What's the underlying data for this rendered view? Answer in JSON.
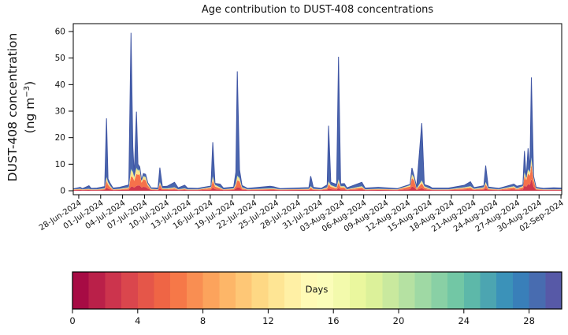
{
  "chart_data": {
    "type": "area",
    "stacked": true,
    "title": "Age contribution to DUST-408 concentrations",
    "ylabel": "DUST-408 concentration",
    "ylabel_units_pre": "(ng m",
    "ylabel_units_sup": "−3",
    "ylabel_units_post": ")",
    "ylim": [
      0,
      60
    ],
    "yticks": [
      0,
      10,
      20,
      30,
      40,
      50,
      60
    ],
    "grid": false,
    "legend": "none (colorbar encodes age in days)",
    "x_domain_days": [
      -0.75,
      66.1
    ],
    "xtick_days": [
      0,
      3,
      6,
      9,
      12,
      15,
      18,
      21,
      24,
      27,
      30,
      33,
      36,
      39,
      42,
      45,
      48,
      51,
      54,
      57,
      60,
      63,
      66
    ],
    "xtick_labels": [
      "28-Jun-2024",
      "01-Jul-2024",
      "04-Jul-2024",
      "07-Jul-2024",
      "10-Jul-2024",
      "13-Jul-2024",
      "16-Jul-2024",
      "19-Jul-2024",
      "22-Jul-2024",
      "25-Jul-2024",
      "28-Jul-2024",
      "31-Jul-2024",
      "03-Aug-2024",
      "06-Aug-2024",
      "09-Aug-2024",
      "12-Aug-2024",
      "15-Aug-2024",
      "18-Aug-2024",
      "21-Aug-2024",
      "24-Aug-2024",
      "27-Aug-2024",
      "30-Aug-2024",
      "02-Sep-2024"
    ],
    "layers": [
      {
        "name": "age-youngest",
        "color": "#cf384d"
      },
      {
        "name": "age-young",
        "color": "#f5714b"
      },
      {
        "name": "age-mid",
        "color": "#fde38c"
      },
      {
        "name": "age-older",
        "color": "#9ad5a5"
      },
      {
        "name": "age-oldest",
        "color": "#4a66ae",
        "stroke": "#3f55a4"
      }
    ],
    "points_format": [
      "day_from_28_jun",
      "total",
      "youngest",
      "young",
      "mid",
      "older"
    ],
    "points": [
      [
        -0.75,
        0.7,
        0.25,
        0.15,
        0.1,
        0.05
      ],
      [
        0.2,
        1.3,
        0.3,
        0.2,
        0.15,
        0.08
      ],
      [
        0.5,
        0.8,
        0.25,
        0.15,
        0.1,
        0.05
      ],
      [
        1.4,
        1.9,
        0.3,
        0.2,
        0.15,
        0.08
      ],
      [
        1.7,
        0.9,
        0.25,
        0.15,
        0.1,
        0.05
      ],
      [
        2.5,
        1.0,
        0.25,
        0.15,
        0.1,
        0.05
      ],
      [
        3.55,
        1.6,
        0.3,
        0.3,
        0.2,
        0.1
      ],
      [
        3.8,
        27.3,
        1.2,
        2.5,
        1.2,
        0.3
      ],
      [
        4.0,
        4.5,
        0.8,
        1.5,
        0.8,
        0.2
      ],
      [
        4.3,
        2.8,
        0.5,
        0.8,
        0.5,
        0.15
      ],
      [
        4.7,
        1.0,
        0.25,
        0.15,
        0.1,
        0.05
      ],
      [
        5.6,
        1.3,
        0.3,
        0.2,
        0.15,
        0.08
      ],
      [
        6.85,
        2.2,
        0.4,
        0.5,
        0.3,
        0.1
      ],
      [
        7.15,
        59.5,
        1.5,
        4.0,
        2.2,
        0.5
      ],
      [
        7.4,
        16.5,
        1.5,
        3.5,
        1.8,
        0.4
      ],
      [
        7.6,
        6.0,
        1.2,
        2.5,
        1.2,
        0.3
      ],
      [
        7.9,
        29.8,
        1.8,
        4.5,
        2.0,
        0.4
      ],
      [
        8.1,
        10.0,
        2.0,
        4.0,
        1.5,
        0.3
      ],
      [
        8.35,
        9.0,
        2.0,
        4.2,
        1.5,
        0.3
      ],
      [
        8.6,
        4.0,
        1.2,
        1.8,
        0.7,
        0.2
      ],
      [
        8.85,
        6.5,
        1.5,
        2.8,
        1.0,
        0.25
      ],
      [
        9.15,
        6.2,
        1.4,
        2.6,
        1.0,
        0.25
      ],
      [
        9.45,
        3.0,
        0.8,
        1.2,
        0.5,
        0.15
      ],
      [
        9.9,
        1.1,
        0.3,
        0.2,
        0.15,
        0.08
      ],
      [
        10.85,
        1.0,
        0.25,
        0.15,
        0.1,
        0.05
      ],
      [
        11.1,
        8.7,
        0.8,
        1.6,
        0.7,
        0.2
      ],
      [
        11.45,
        1.6,
        0.3,
        0.3,
        0.2,
        0.1
      ],
      [
        12.1,
        1.7,
        0.3,
        0.3,
        0.2,
        0.1
      ],
      [
        13.1,
        3.2,
        0.4,
        0.5,
        0.3,
        0.1
      ],
      [
        13.6,
        1.1,
        0.25,
        0.15,
        0.1,
        0.05
      ],
      [
        14.5,
        2.1,
        0.3,
        0.3,
        0.2,
        0.1
      ],
      [
        14.9,
        1.0,
        0.25,
        0.15,
        0.1,
        0.05
      ],
      [
        16.3,
        0.9,
        0.25,
        0.15,
        0.1,
        0.05
      ],
      [
        18.1,
        1.8,
        0.4,
        0.6,
        0.3,
        0.1
      ],
      [
        18.35,
        18.3,
        1.2,
        2.8,
        1.2,
        0.3
      ],
      [
        18.65,
        2.8,
        0.6,
        1.0,
        0.5,
        0.15
      ],
      [
        19.35,
        2.5,
        0.4,
        0.5,
        0.3,
        0.1
      ],
      [
        19.8,
        1.0,
        0.25,
        0.15,
        0.1,
        0.05
      ],
      [
        21.2,
        1.4,
        0.3,
        0.3,
        0.2,
        0.1
      ],
      [
        21.5,
        7.0,
        0.8,
        1.2,
        0.6,
        0.2
      ],
      [
        21.7,
        45.0,
        1.3,
        2.6,
        1.4,
        0.4
      ],
      [
        22.0,
        8.0,
        1.2,
        2.4,
        1.0,
        0.3
      ],
      [
        22.35,
        2.0,
        0.4,
        0.5,
        0.3,
        0.1
      ],
      [
        23.1,
        0.9,
        0.25,
        0.15,
        0.1,
        0.05
      ],
      [
        26.2,
        1.7,
        0.3,
        0.3,
        0.2,
        0.1
      ],
      [
        26.7,
        1.5,
        0.3,
        0.3,
        0.2,
        0.1
      ],
      [
        27.6,
        0.8,
        0.25,
        0.15,
        0.1,
        0.05
      ],
      [
        31.5,
        1.2,
        0.3,
        0.2,
        0.15,
        0.08
      ],
      [
        31.75,
        5.5,
        0.5,
        0.7,
        0.4,
        0.15
      ],
      [
        32.1,
        1.3,
        0.3,
        0.2,
        0.15,
        0.08
      ],
      [
        33.2,
        0.9,
        0.25,
        0.15,
        0.1,
        0.05
      ],
      [
        34.0,
        2.2,
        0.4,
        0.5,
        0.3,
        0.1
      ],
      [
        34.2,
        24.5,
        0.9,
        1.6,
        0.8,
        0.25
      ],
      [
        34.5,
        3.2,
        0.6,
        0.9,
        0.5,
        0.15
      ],
      [
        35.3,
        2.4,
        0.4,
        0.5,
        0.3,
        0.1
      ],
      [
        35.55,
        50.5,
        1.0,
        2.0,
        1.0,
        0.3
      ],
      [
        35.85,
        2.6,
        0.5,
        0.7,
        0.4,
        0.15
      ],
      [
        36.35,
        2.7,
        0.5,
        0.7,
        0.4,
        0.15
      ],
      [
        36.7,
        1.1,
        0.25,
        0.15,
        0.1,
        0.05
      ],
      [
        38.75,
        3.2,
        0.5,
        0.7,
        0.4,
        0.15
      ],
      [
        39.2,
        1.0,
        0.25,
        0.15,
        0.1,
        0.05
      ],
      [
        41.0,
        1.3,
        0.3,
        0.2,
        0.15,
        0.08
      ],
      [
        43.6,
        0.8,
        0.25,
        0.15,
        0.1,
        0.05
      ],
      [
        45.35,
        2.4,
        0.6,
        1.0,
        0.4,
        0.1
      ],
      [
        45.6,
        8.6,
        1.6,
        3.2,
        1.2,
        0.25
      ],
      [
        45.9,
        5.4,
        1.3,
        2.6,
        0.9,
        0.2
      ],
      [
        46.25,
        1.4,
        0.3,
        0.3,
        0.2,
        0.1
      ],
      [
        46.95,
        25.5,
        1.0,
        1.8,
        0.9,
        0.25
      ],
      [
        47.3,
        2.3,
        0.5,
        0.7,
        0.4,
        0.15
      ],
      [
        48.0,
        1.7,
        0.3,
        0.3,
        0.2,
        0.1
      ],
      [
        48.4,
        1.0,
        0.25,
        0.15,
        0.1,
        0.05
      ],
      [
        50.6,
        1.0,
        0.25,
        0.15,
        0.1,
        0.05
      ],
      [
        52.8,
        2.1,
        0.4,
        0.5,
        0.3,
        0.1
      ],
      [
        53.6,
        3.4,
        0.5,
        0.7,
        0.4,
        0.15
      ],
      [
        54.1,
        1.2,
        0.3,
        0.2,
        0.15,
        0.08
      ],
      [
        55.45,
        1.9,
        0.4,
        0.5,
        0.3,
        0.1
      ],
      [
        55.7,
        9.5,
        0.9,
        1.5,
        0.7,
        0.2
      ],
      [
        56.05,
        1.4,
        0.3,
        0.3,
        0.2,
        0.1
      ],
      [
        57.5,
        0.9,
        0.25,
        0.15,
        0.1,
        0.05
      ],
      [
        59.55,
        2.5,
        0.5,
        0.7,
        0.4,
        0.15
      ],
      [
        59.95,
        1.7,
        0.3,
        0.3,
        0.2,
        0.1
      ],
      [
        60.8,
        2.2,
        0.5,
        0.8,
        0.4,
        0.1
      ],
      [
        61.0,
        15.0,
        2.0,
        3.5,
        1.2,
        0.3
      ],
      [
        61.25,
        5.0,
        1.5,
        2.5,
        0.8,
        0.2
      ],
      [
        61.5,
        16.0,
        2.5,
        4.0,
        1.3,
        0.3
      ],
      [
        61.75,
        8.5,
        2.2,
        3.5,
        1.1,
        0.25
      ],
      [
        61.95,
        42.7,
        4.5,
        5.5,
        1.8,
        0.8
      ],
      [
        62.25,
        5.5,
        1.5,
        2.5,
        0.8,
        0.2
      ],
      [
        62.6,
        1.3,
        0.3,
        0.3,
        0.2,
        0.1
      ],
      [
        63.6,
        0.9,
        0.25,
        0.15,
        0.1,
        0.05
      ],
      [
        65.0,
        1.1,
        0.25,
        0.15,
        0.1,
        0.05
      ],
      [
        66.1,
        1.0,
        0.25,
        0.15,
        0.1,
        0.05
      ]
    ],
    "colorbar": {
      "label": "Days",
      "vmin": 0,
      "vmax": 30,
      "n_bins": 30,
      "ticks": [
        0,
        4,
        8,
        12,
        16,
        20,
        24,
        28
      ],
      "spectral_anchors": [
        "#9e0142",
        "#d53e4f",
        "#f46d43",
        "#fdae61",
        "#fee08b",
        "#ffffbf",
        "#e6f598",
        "#abdda4",
        "#66c2a5",
        "#3288bd",
        "#5e4fa2"
      ]
    }
  }
}
